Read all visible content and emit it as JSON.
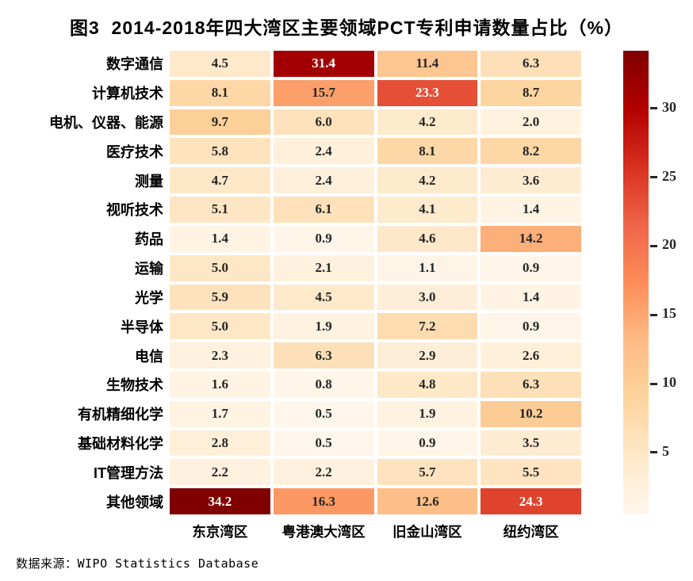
{
  "title": "图3  2014-2018年四大湾区主要领域PCT专利申请数量占比（%）",
  "source": "数据来源：WIPO Statistics Database",
  "chart_data": {
    "type": "heatmap",
    "title": "图3  2014-2018年四大湾区主要领域PCT专利申请数量占比（%）",
    "rows": [
      "数字通信",
      "计算机技术",
      "电机、仪器、能源",
      "医疗技术",
      "测量",
      "视听技术",
      "药品",
      "运输",
      "光学",
      "半导体",
      "电信",
      "生物技术",
      "有机精细化学",
      "基础材料化学",
      "IT管理方法",
      "其他领域"
    ],
    "columns": [
      "东京湾区",
      "粤港澳大湾区",
      "旧金山湾区",
      "纽约湾区"
    ],
    "values": [
      [
        4.5,
        31.4,
        11.4,
        6.3
      ],
      [
        8.1,
        15.7,
        23.3,
        8.7
      ],
      [
        9.7,
        6.0,
        4.2,
        2.0
      ],
      [
        5.8,
        2.4,
        8.1,
        8.2
      ],
      [
        4.7,
        2.4,
        4.2,
        3.6
      ],
      [
        5.1,
        6.1,
        4.1,
        1.4
      ],
      [
        1.4,
        0.9,
        4.6,
        14.2
      ],
      [
        5.0,
        2.1,
        1.1,
        0.9
      ],
      [
        5.9,
        4.5,
        3.0,
        1.4
      ],
      [
        5.0,
        1.9,
        7.2,
        0.9
      ],
      [
        2.3,
        6.3,
        2.9,
        2.6
      ],
      [
        1.6,
        0.8,
        4.8,
        6.3
      ],
      [
        1.7,
        0.5,
        1.9,
        10.2
      ],
      [
        2.8,
        0.5,
        0.9,
        3.5
      ],
      [
        2.2,
        2.2,
        5.7,
        5.5
      ],
      [
        34.2,
        16.3,
        12.6,
        24.3
      ]
    ],
    "value_format": "one_decimal",
    "vmin": 0.5,
    "vmax": 34.2,
    "colormap": "OrRd",
    "colormap_stops": [
      "#fff7ec",
      "#fee8c8",
      "#fdd49e",
      "#fdbb84",
      "#fc8d59",
      "#ef6548",
      "#d7301f",
      "#b30000",
      "#7f0000"
    ],
    "colorbar_ticks": [
      5,
      10,
      15,
      20,
      25,
      30
    ],
    "colorbar_position": "right",
    "annot_color_dark": "#262626",
    "annot_color_light": "#ffffff",
    "cell_gap_color": "#ffffff",
    "grid": false,
    "legend": false
  }
}
